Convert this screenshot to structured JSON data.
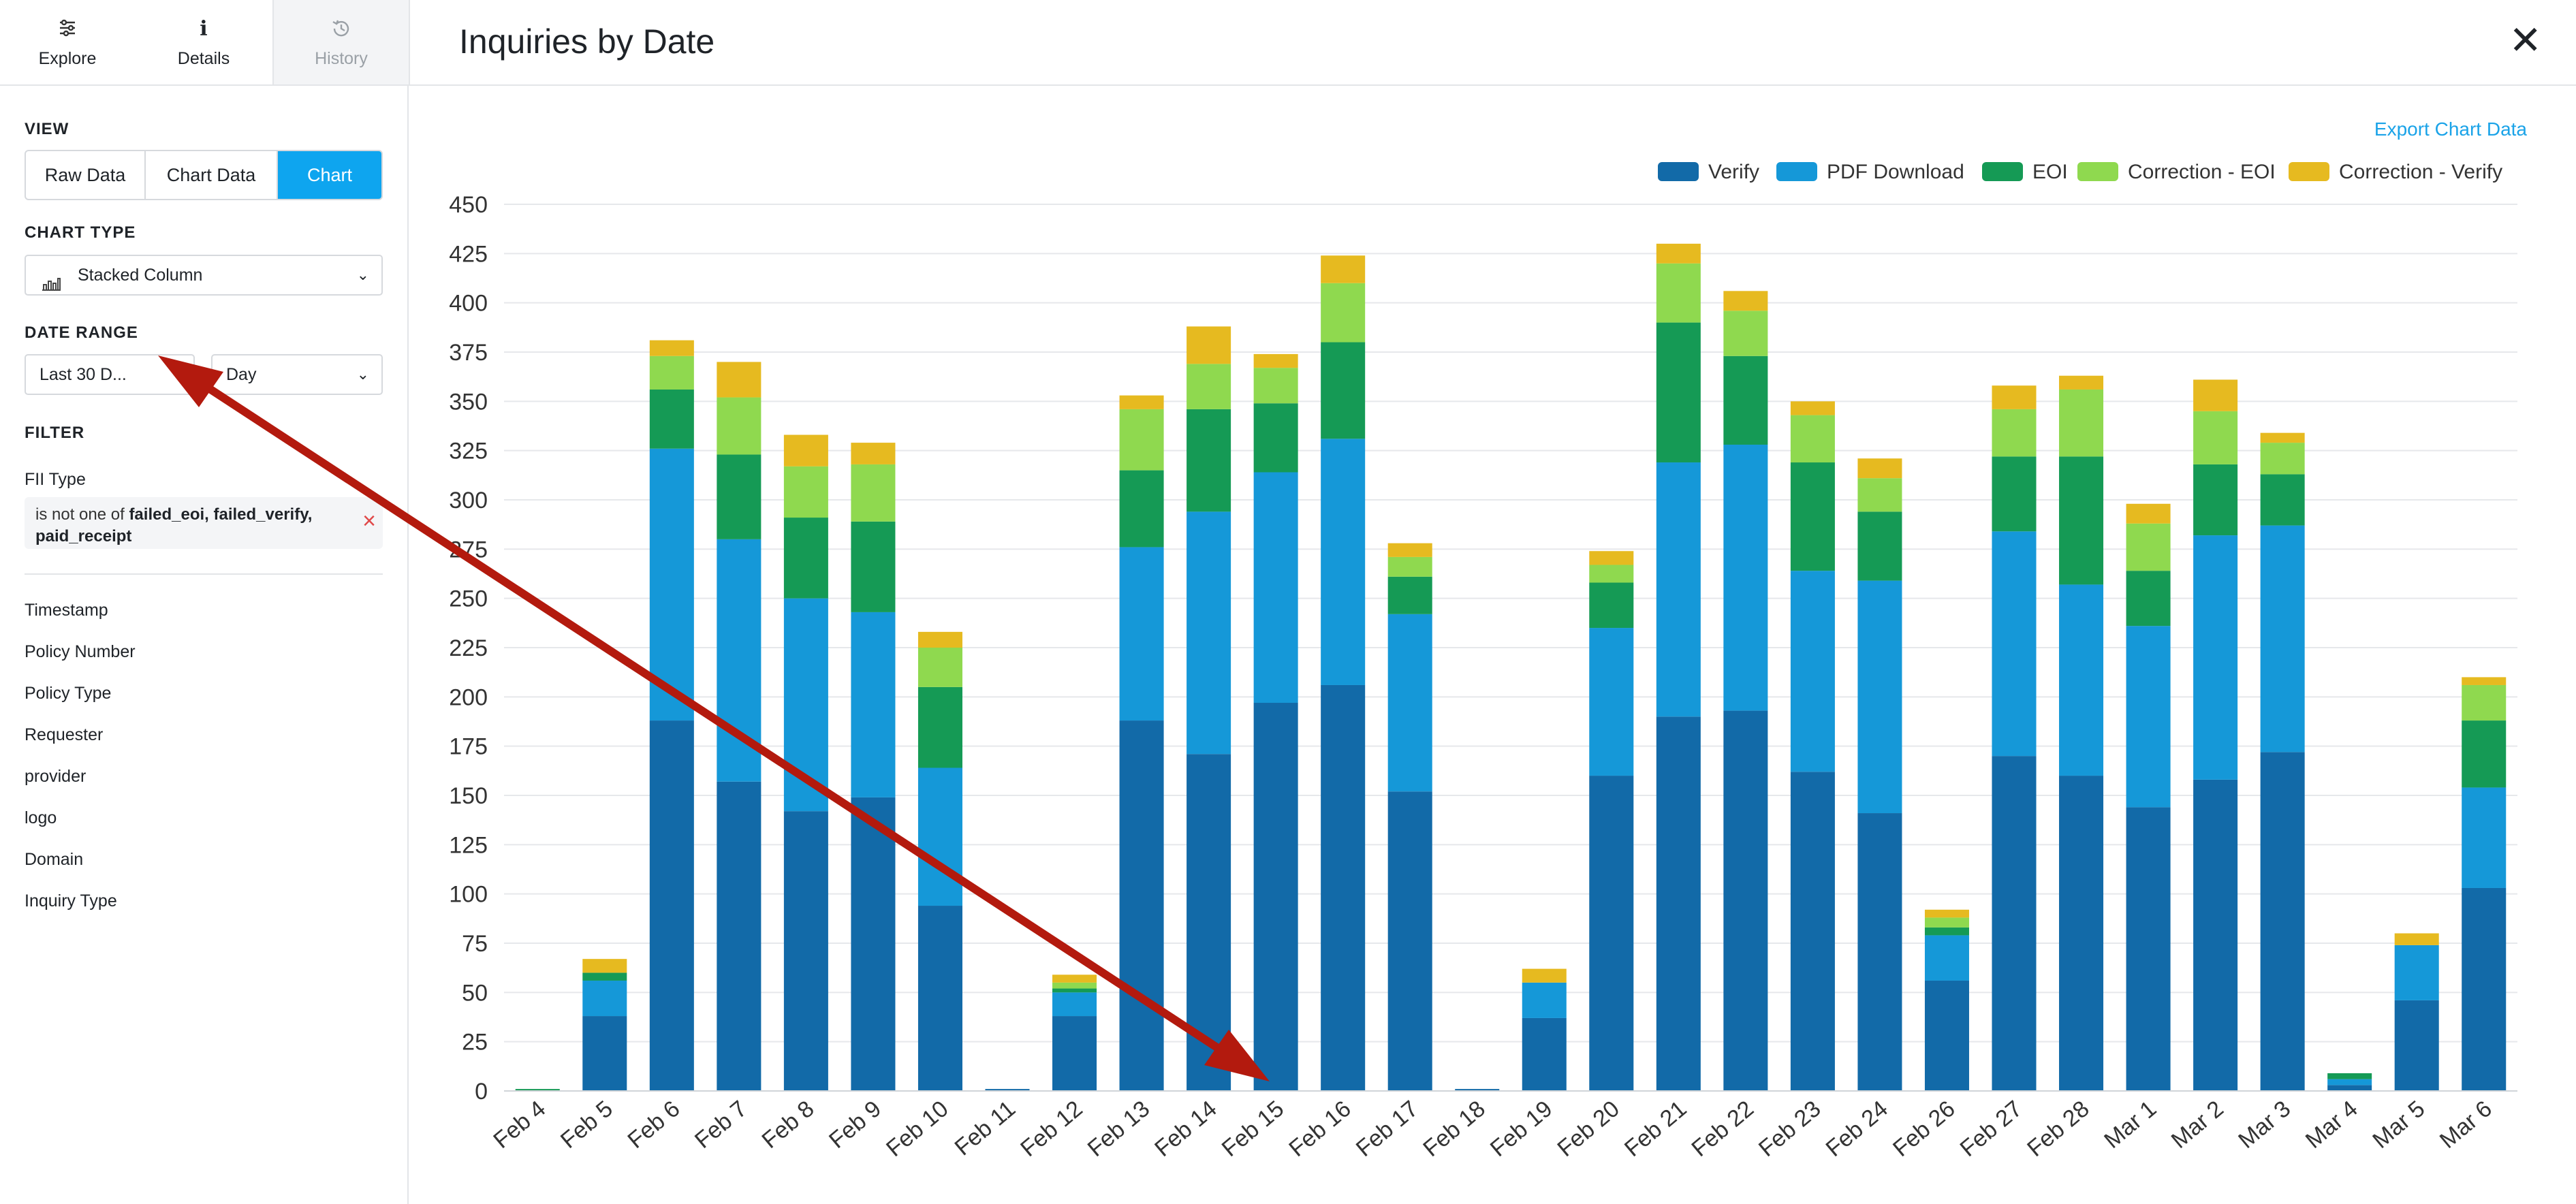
{
  "sidebar": {
    "tabs": [
      {
        "label": "Explore",
        "icon": "sliders-icon"
      },
      {
        "label": "Details",
        "icon": "info-icon"
      },
      {
        "label": "History",
        "icon": "history-icon"
      }
    ],
    "view_label": "VIEW",
    "view_options": [
      "Raw Data",
      "Chart Data",
      "Chart"
    ],
    "view_selected": "Chart",
    "chart_type_label": "CHART TYPE",
    "chart_type_value": "Stacked Column",
    "date_range_label": "DATE RANGE",
    "date_range_value": "Last 30 D...",
    "date_interval_value": "Day",
    "filter_label": "FILTER",
    "filter_field": "FII Type",
    "filter_prefix": "is not one of ",
    "filter_values": "failed_eoi, failed_verify, paid_receipt",
    "fields": [
      "Timestamp",
      "Policy Number",
      "Policy Type",
      "Requester",
      "provider",
      "logo",
      "Domain",
      "Inquiry Type"
    ]
  },
  "header": {
    "title": "Inquiries by Date"
  },
  "export_label": "Export Chart Data",
  "colors": {
    "accent": "#0ea5ef",
    "annotation_arrow": "#b31a0e"
  },
  "chart_data": {
    "type": "bar",
    "stacked": true,
    "title": "Inquiries by Date",
    "legend_position": "top-right",
    "grid": true,
    "ylim": [
      0,
      450
    ],
    "yticks": [
      0,
      25,
      50,
      75,
      100,
      125,
      150,
      175,
      200,
      225,
      250,
      275,
      300,
      325,
      350,
      375,
      400,
      425,
      450
    ],
    "categories": [
      "Feb 4",
      "Feb 5",
      "Feb 6",
      "Feb 7",
      "Feb 8",
      "Feb 9",
      "Feb 10",
      "Feb 11",
      "Feb 12",
      "Feb 13",
      "Feb 14",
      "Feb 15",
      "Feb 16",
      "Feb 17",
      "Feb 18",
      "Feb 19",
      "Feb 20",
      "Feb 21",
      "Feb 22",
      "Feb 23",
      "Feb 24",
      "Feb 26",
      "Feb 27",
      "Feb 28",
      "Mar 1",
      "Mar 2",
      "Mar 3",
      "Mar 4",
      "Mar 5",
      "Mar 6"
    ],
    "series": [
      {
        "name": "Verify",
        "color": "#126aa8",
        "values": [
          0,
          38,
          188,
          157,
          142,
          149,
          94,
          1,
          38,
          188,
          171,
          197,
          206,
          152,
          1,
          37,
          160,
          190,
          193,
          162,
          141,
          56,
          170,
          160,
          144,
          158,
          172,
          3,
          46,
          103
        ]
      },
      {
        "name": "PDF Download",
        "color": "#1598d8",
        "values": [
          0,
          18,
          138,
          123,
          108,
          94,
          70,
          0,
          12,
          88,
          123,
          117,
          125,
          90,
          0,
          18,
          75,
          129,
          135,
          102,
          118,
          23,
          114,
          97,
          92,
          124,
          115,
          3,
          28,
          51
        ]
      },
      {
        "name": "EOI",
        "color": "#159a55",
        "values": [
          1,
          4,
          30,
          43,
          41,
          46,
          41,
          0,
          2,
          39,
          52,
          35,
          49,
          19,
          0,
          0,
          23,
          71,
          45,
          55,
          35,
          4,
          38,
          65,
          28,
          36,
          26,
          3,
          0,
          34
        ]
      },
      {
        "name": "Correction - EOI",
        "color": "#8fd94f",
        "values": [
          0,
          0,
          17,
          29,
          26,
          29,
          20,
          0,
          3,
          31,
          23,
          18,
          30,
          10,
          0,
          0,
          9,
          30,
          23,
          24,
          17,
          5,
          24,
          34,
          24,
          27,
          16,
          0,
          0,
          18
        ]
      },
      {
        "name": "Correction - Verify",
        "color": "#e6ba20",
        "values": [
          0,
          7,
          8,
          18,
          16,
          11,
          8,
          0,
          4,
          7,
          19,
          7,
          14,
          7,
          0,
          7,
          7,
          10,
          10,
          7,
          10,
          4,
          12,
          7,
          10,
          16,
          5,
          0,
          6,
          4
        ]
      }
    ]
  }
}
